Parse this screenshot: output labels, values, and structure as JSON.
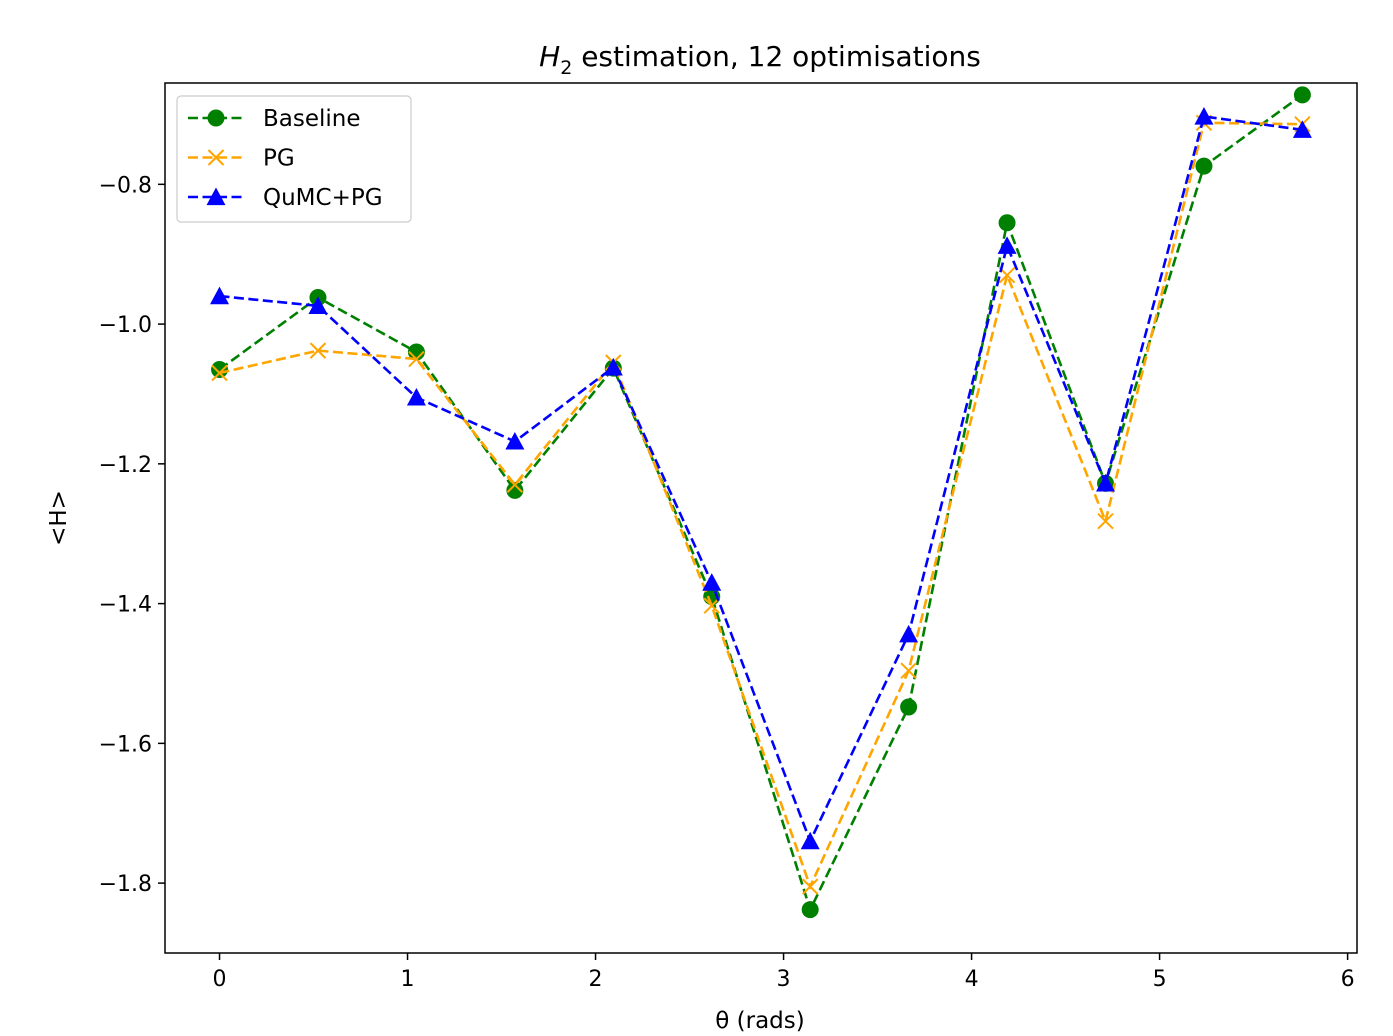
{
  "chart_data": {
    "type": "line",
    "title_main": "H",
    "title_sub": "2",
    "title_rest": " estimation, 12 optimisations",
    "xlabel": "θ (rads)",
    "ylabel": "<H>",
    "xlim": [
      -0.29,
      6.05
    ],
    "ylim": [
      -1.9,
      -0.655
    ],
    "xticks": [
      0,
      1,
      2,
      3,
      4,
      5,
      6
    ],
    "xtick_labels": [
      "0",
      "1",
      "2",
      "3",
      "4",
      "5",
      "6"
    ],
    "yticks": [
      -0.8,
      -1.0,
      -1.2,
      -1.4,
      -1.6,
      -1.8
    ],
    "ytick_labels": [
      "−0.8",
      "−1.0",
      "−1.2",
      "−1.4",
      "−1.6",
      "−1.8"
    ],
    "legend_position": "top-left",
    "grid": false,
    "x": [
      0,
      0.5236,
      1.0472,
      1.5708,
      2.0944,
      2.618,
      3.1416,
      3.6652,
      4.1888,
      4.7124,
      5.236,
      5.7596
    ],
    "series": [
      {
        "name": "Baseline",
        "color": "#008000",
        "marker": "circle",
        "values": [
          -1.065,
          -0.962,
          -1.04,
          -1.238,
          -1.063,
          -1.39,
          -1.838,
          -1.548,
          -0.855,
          -1.228,
          -0.774,
          -0.672
        ]
      },
      {
        "name": "PG",
        "color": "#ffa500",
        "marker": "x",
        "values": [
          -1.07,
          -1.038,
          -1.05,
          -1.23,
          -1.055,
          -1.403,
          -1.805,
          -1.496,
          -0.93,
          -1.282,
          -0.712,
          -0.714
        ]
      },
      {
        "name": "QuMC+PG",
        "color": "#0000ff",
        "marker": "triangle",
        "values": [
          -0.96,
          -0.974,
          -1.105,
          -1.168,
          -1.062,
          -1.37,
          -1.74,
          -1.444,
          -0.888,
          -1.228,
          -0.703,
          -0.722
        ]
      }
    ]
  }
}
